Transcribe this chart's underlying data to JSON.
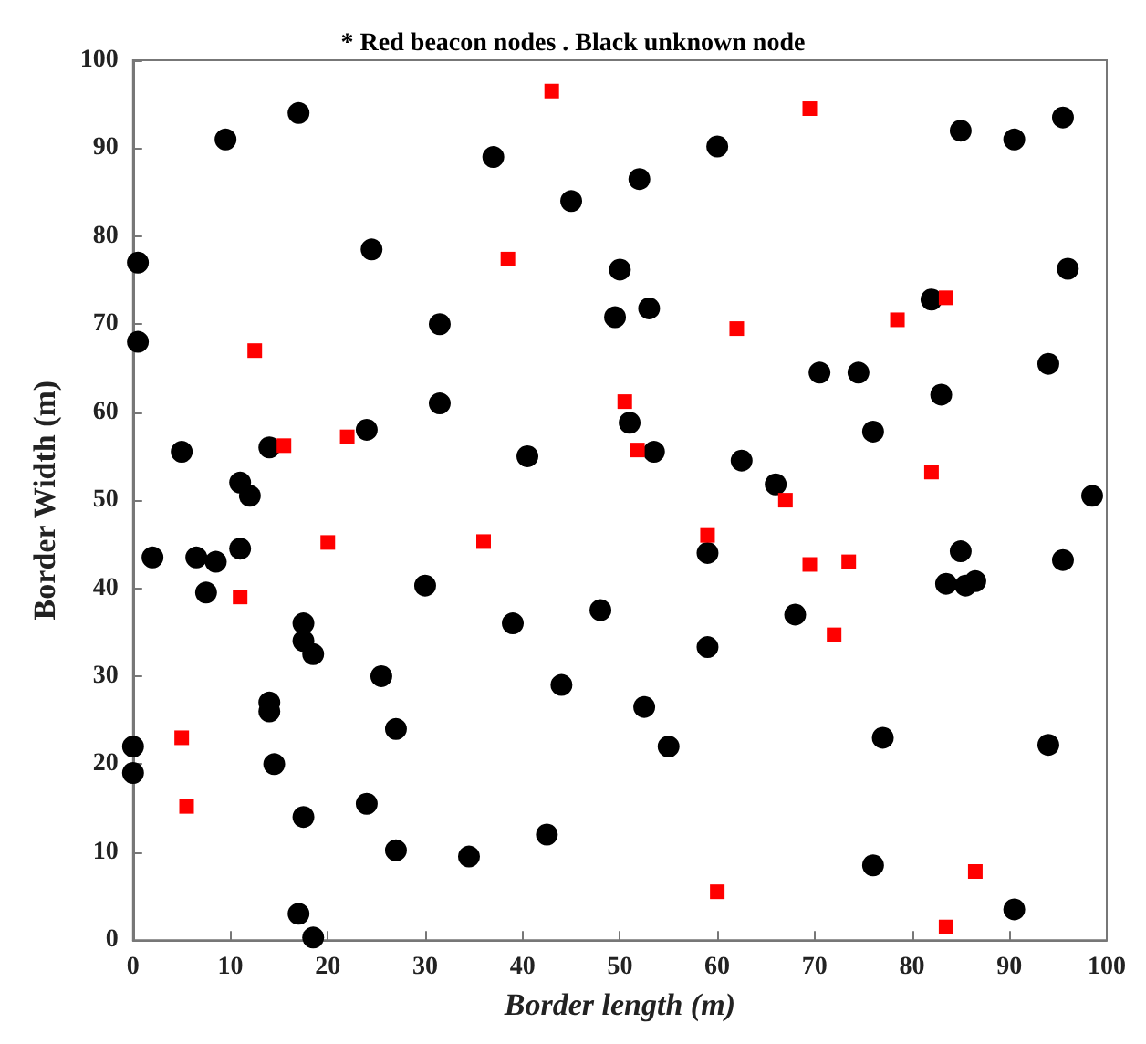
{
  "chart_data": {
    "type": "scatter",
    "title": "* Red beacon nodes . Black unknown node",
    "xlabel": "Border length (m)",
    "ylabel": "Border Width (m)",
    "xlim": [
      0,
      100
    ],
    "xticks": [
      0,
      10,
      20,
      30,
      40,
      50,
      60,
      70,
      80,
      90,
      100
    ],
    "ylim": [
      0,
      100
    ],
    "yticks": [
      0,
      10,
      20,
      30,
      40,
      50,
      60,
      70,
      80,
      90,
      100
    ],
    "grid": false,
    "series": [
      {
        "color": "#000000",
        "marker": "circle",
        "x": [
          0.5,
          0.5,
          0,
          0,
          2,
          5,
          6.5,
          7.5,
          8.5,
          9.5,
          11,
          11,
          12,
          14,
          14,
          14,
          14.5,
          17,
          17.5,
          17.5,
          18.5,
          17.5,
          17,
          18.5,
          24,
          24.5,
          24,
          25.5,
          27,
          27,
          30,
          31.5,
          31.5,
          34.5,
          37,
          39,
          40.5,
          42.5,
          44,
          45,
          48,
          49.5,
          50,
          51,
          52,
          52.5,
          53,
          53.5,
          55,
          59,
          59,
          60,
          62.5,
          66,
          68,
          70.5,
          74.5,
          76,
          76,
          77,
          82,
          83,
          83.5,
          85,
          85,
          85.5,
          86.5,
          90.5,
          90.5,
          94,
          94,
          95.5,
          95.5,
          96,
          98.5
        ],
        "values": [
          77,
          68,
          22,
          19,
          43.5,
          55.5,
          43.5,
          39.5,
          43,
          91,
          52,
          44.5,
          50.5,
          56,
          26,
          27,
          20,
          94,
          36,
          34,
          32.5,
          14,
          3,
          0.3,
          58,
          78.5,
          15.5,
          30,
          10.2,
          24,
          40.3,
          70,
          61,
          9.5,
          89,
          36,
          55,
          12,
          29,
          84,
          37.5,
          70.8,
          76.2,
          58.8,
          86.5,
          26.5,
          71.8,
          55.5,
          22,
          44,
          33.3,
          90.2,
          54.5,
          51.8,
          37,
          64.5,
          64.5,
          57.8,
          8.5,
          23,
          72.8,
          62,
          40.5,
          92,
          44.2,
          40.3,
          40.8,
          91,
          3.5,
          65.5,
          22.2,
          93.5,
          43.2,
          76.3,
          50.5
        ]
      },
      {
        "color": "#ff0000",
        "marker": "square",
        "x": [
          5,
          5.5,
          11,
          12.5,
          15.5,
          20,
          22,
          36,
          38.5,
          43,
          50.5,
          51.8,
          59,
          60,
          62,
          67,
          69.5,
          69.5,
          72,
          73.5,
          78.5,
          82,
          83.5,
          83.5,
          86.5
        ],
        "values": [
          23,
          15.2,
          39,
          67,
          56.2,
          45.2,
          57.2,
          45.3,
          77.4,
          96.5,
          61.2,
          55.7,
          46,
          5.5,
          69.5,
          50,
          94.5,
          42.7,
          34.7,
          43,
          70.5,
          53.2,
          73,
          1.5,
          7.8
        ]
      }
    ]
  }
}
